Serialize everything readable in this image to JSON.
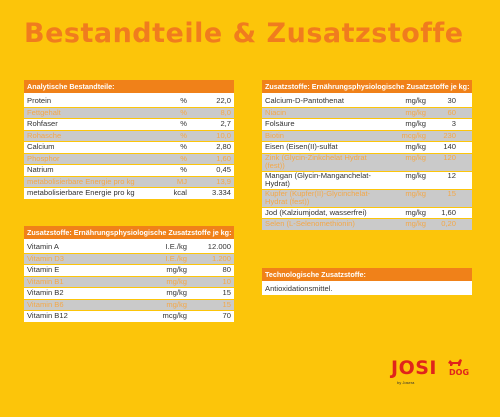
{
  "title": "Bestandteile & Zusatzstoffe",
  "analytical": {
    "header": "Analytische Bestandteile:",
    "rows": [
      {
        "name": "Protein",
        "unit": "%",
        "value": "22,0"
      },
      {
        "name": "Fettgehalt",
        "unit": "%",
        "value": "8,0"
      },
      {
        "name": "Rohfaser",
        "unit": "%",
        "value": "2,7"
      },
      {
        "name": "Rohasche",
        "unit": "%",
        "value": "10,0"
      },
      {
        "name": "Calcium",
        "unit": "%",
        "value": "2,80"
      },
      {
        "name": "Phosphor",
        "unit": "%",
        "value": "1,60"
      },
      {
        "name": "Natrium",
        "unit": "%",
        "value": "0,45"
      },
      {
        "name": "metabolisierbare Energie pro kg",
        "unit": "MJ",
        "value": "13,9"
      },
      {
        "name": "metabolisierbare Energie pro kg",
        "unit": "kcal",
        "value": "3.334"
      }
    ]
  },
  "additives_left": {
    "header": "Zusatzstoffe: Ernährungsphysiologische Zusatzstoffe je kg:",
    "rows": [
      {
        "name": "Vitamin A",
        "unit": "I.E./kg",
        "value": "12.000"
      },
      {
        "name": "Vitamin D3",
        "unit": "I.E./kg",
        "value": "1.200"
      },
      {
        "name": "Vitamin E",
        "unit": "mg/kg",
        "value": "80"
      },
      {
        "name": "Vitamin B1",
        "unit": "mg/kg",
        "value": "10"
      },
      {
        "name": "Vitamin B2",
        "unit": "mg/kg",
        "value": "15"
      },
      {
        "name": "Vitamin B6",
        "unit": "mg/kg",
        "value": "15"
      },
      {
        "name": "Vitamin B12",
        "unit": "mcg/kg",
        "value": "70"
      }
    ]
  },
  "additives_right": {
    "header": "Zusatzstoffe: Ernährungsphysiologische Zusatzstoffe je kg:",
    "rows": [
      {
        "name": "Calcium-D-Pantothenat",
        "unit": "mg/kg",
        "value": "30"
      },
      {
        "name": "Niacin",
        "unit": "mg/kg",
        "value": "60"
      },
      {
        "name": "Folsäure",
        "unit": "mg/kg",
        "value": "3"
      },
      {
        "name": "Biotin",
        "unit": "mcg/kg",
        "value": "230"
      },
      {
        "name": "Eisen (Eisen(II)-sulfat Monohydrat)",
        "unit": "mg/kg",
        "value": "140"
      },
      {
        "name": "Zink (Glycin-Zinkchelat Hydrat (fest))",
        "unit": "mg/kg",
        "value": "120"
      },
      {
        "name": "Mangan (Glycin-Manganchelat-Hydrat)",
        "unit": "mg/kg",
        "value": "12"
      },
      {
        "name": "Kupfer (Kupfer(II)-Glycinchelat-Hydrat (fest))",
        "unit": "mg/kg",
        "value": "15"
      },
      {
        "name": "Jod (Kalziumjodat, wasserfrei)",
        "unit": "mg/kg",
        "value": "1,60"
      },
      {
        "name": "Selen (L-Selenomethionin)",
        "unit": "mg/kg",
        "value": "0,20"
      }
    ]
  },
  "technological": {
    "header": "Technologische Zusatzstoffe:",
    "rows": [
      {
        "name": "Antioxidationsmittel."
      }
    ]
  },
  "logo": {
    "name": "JOSI",
    "suffix": "DOG",
    "tagline": "by Josera"
  },
  "colors": {
    "background": "#fcc50a",
    "header": "#f08119",
    "title": "#f07c1e",
    "alt_row": "#cacaca",
    "logo": "#e0241b"
  }
}
